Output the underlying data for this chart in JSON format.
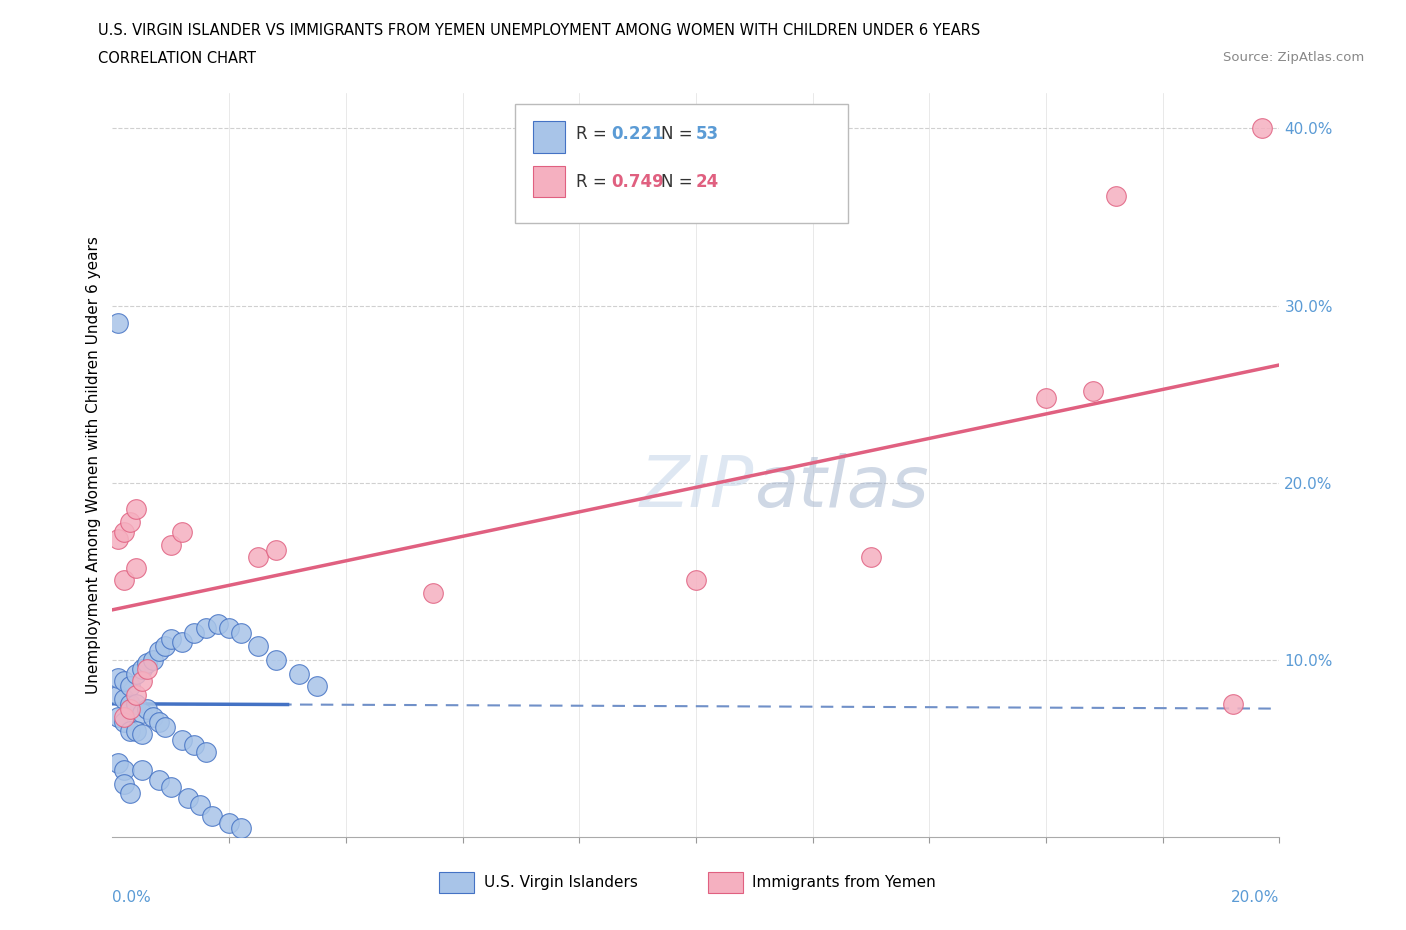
{
  "title_line1": "U.S. VIRGIN ISLANDER VS IMMIGRANTS FROM YEMEN UNEMPLOYMENT AMONG WOMEN WITH CHILDREN UNDER 6 YEARS",
  "title_line2": "CORRELATION CHART",
  "source": "Source: ZipAtlas.com",
  "ylabel": "Unemployment Among Women with Children Under 6 years",
  "watermark": "ZIPatlas",
  "blue_color": "#a8c4e8",
  "pink_color": "#f5b0c0",
  "blue_line_color": "#4472c4",
  "pink_line_color": "#e06080",
  "blue_dash_color": "#7090c8",
  "grid_color": "#d0d0d0",
  "blue_r": 0.221,
  "blue_n": 53,
  "pink_r": 0.749,
  "pink_n": 24,
  "blue_x": [
    0.001,
    0.002,
    0.003,
    0.004,
    0.005,
    0.001,
    0.002,
    0.003,
    0.004,
    0.005,
    0.001,
    0.002,
    0.003,
    0.004,
    0.006,
    0.007,
    0.008,
    0.009,
    0.01,
    0.006,
    0.007,
    0.008,
    0.011,
    0.012,
    0.013,
    0.011,
    0.012,
    0.014,
    0.015,
    0.016,
    0.017,
    0.018,
    0.02,
    0.022,
    0.025,
    0.027,
    0.03,
    0.032,
    0.001,
    0.002,
    0.003,
    0.004,
    0.005,
    0.006,
    0.007,
    0.008,
    0.01,
    0.012,
    0.014,
    0.016,
    0.018,
    0.02,
    0.001
  ],
  "blue_y": [
    0.07,
    0.065,
    0.06,
    0.055,
    0.05,
    0.08,
    0.075,
    0.085,
    0.09,
    0.095,
    0.1,
    0.105,
    0.11,
    0.115,
    0.068,
    0.072,
    0.076,
    0.08,
    0.085,
    0.095,
    0.1,
    0.105,
    0.072,
    0.078,
    0.083,
    0.06,
    0.055,
    0.065,
    0.068,
    0.072,
    0.06,
    0.055,
    0.062,
    0.058,
    0.055,
    0.052,
    0.048,
    0.045,
    0.045,
    0.04,
    0.035,
    0.03,
    0.025,
    0.038,
    0.032,
    0.028,
    0.022,
    0.018,
    0.015,
    0.012,
    0.008,
    0.005,
    0.285
  ],
  "pink_x": [
    0.001,
    0.002,
    0.003,
    0.004,
    0.005,
    0.001,
    0.003,
    0.01,
    0.012,
    0.025,
    0.027,
    0.06,
    0.1,
    0.13,
    0.16,
    0.165,
    0.17,
    0.19,
    0.195,
    0.001,
    0.002,
    0.003,
    0.004,
    0.005
  ],
  "pink_y": [
    0.165,
    0.17,
    0.175,
    0.18,
    0.19,
    0.14,
    0.15,
    0.165,
    0.17,
    0.155,
    0.16,
    0.135,
    0.145,
    0.155,
    0.248,
    0.25,
    0.36,
    0.075,
    0.4,
    0.068,
    0.072,
    0.078,
    0.082,
    0.09
  ]
}
